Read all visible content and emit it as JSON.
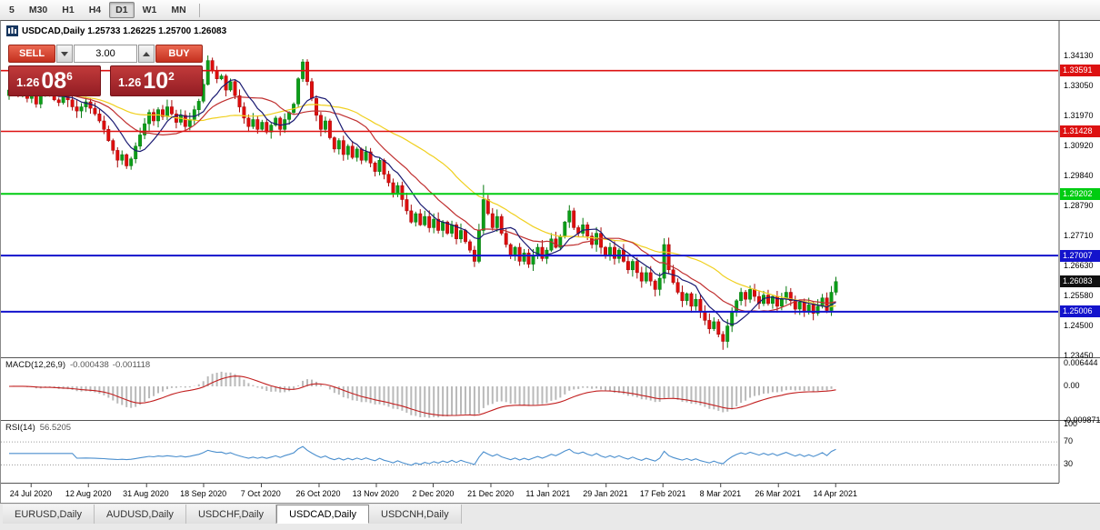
{
  "toolbar": {
    "timeframes": [
      {
        "label": "5",
        "active": false
      },
      {
        "label": "M30",
        "active": false
      },
      {
        "label": "H1",
        "active": false
      },
      {
        "label": "H4",
        "active": false
      },
      {
        "label": "D1",
        "active": true
      },
      {
        "label": "W1",
        "active": false
      },
      {
        "label": "MN",
        "active": false
      }
    ]
  },
  "chart": {
    "title_line": "USDCAD,Daily 1.25733 1.26225 1.25700 1.26083",
    "trade_panel": {
      "sell_label": "SELL",
      "buy_label": "BUY",
      "lot_size": "3.00",
      "sell_price": {
        "big": "1.26",
        "mid": "08",
        "sup": "6"
      },
      "buy_price": {
        "big": "1.26",
        "mid": "10",
        "sup": "2"
      }
    }
  },
  "price_axis": {
    "plain": [
      {
        "text": "1.34130",
        "value": 1.3413
      },
      {
        "text": "1.33050",
        "value": 1.3305
      },
      {
        "text": "1.31970",
        "value": 1.3197
      },
      {
        "text": "1.30920",
        "value": 1.3092
      },
      {
        "text": "1.29840",
        "value": 1.2984
      },
      {
        "text": "1.28790",
        "value": 1.2879
      },
      {
        "text": "1.27710",
        "value": 1.2771
      },
      {
        "text": "1.26630",
        "value": 1.2663
      },
      {
        "text": "1.25580",
        "value": 1.2558
      },
      {
        "text": "1.24500",
        "value": 1.245
      },
      {
        "text": "1.23450",
        "value": 1.2345
      }
    ],
    "levels": [
      {
        "text": "1.33591",
        "value": 1.33591,
        "color": "#dd1111",
        "lw": 1.6
      },
      {
        "text": "1.31428",
        "value": 1.31428,
        "color": "#dd1111",
        "lw": 1.6
      },
      {
        "text": "1.29202",
        "value": 1.29202,
        "color": "#00cc11",
        "lw": 2
      },
      {
        "text": "1.27007",
        "value": 1.27007,
        "color": "#1313cc",
        "lw": 2
      },
      {
        "text": "1.25006",
        "value": 1.25006,
        "color": "#1313cc",
        "lw": 2
      }
    ],
    "current": {
      "text": "1.26083",
      "value": 1.26083,
      "color": "#101010"
    }
  },
  "indicators": {
    "macd": {
      "name": "MACD(12,26,9)",
      "value_main": "-0.000438",
      "value_signal": "-0.001118",
      "axis": [
        "0.006444",
        "0.00",
        "-0.009871"
      ],
      "fast": 12,
      "slow": 26,
      "signal": 9
    },
    "rsi": {
      "name": "RSI(14)",
      "value": "56.5205",
      "axis": [
        "100",
        "70",
        "30"
      ],
      "period": 14,
      "levels": [
        70,
        30
      ]
    }
  },
  "date_axis": [
    "24 Jul 2020",
    "12 Aug 2020",
    "31 Aug 2020",
    "18 Sep 2020",
    "7 Oct 2020",
    "26 Oct 2020",
    "13 Nov 2020",
    "2 Dec 2020",
    "21 Dec 2020",
    "11 Jan 2021",
    "29 Jan 2021",
    "17 Feb 2021",
    "8 Mar 2021",
    "26 Mar 2021",
    "14 Apr 2021"
  ],
  "tabs": [
    {
      "label": "EURUSD,Daily",
      "active": false
    },
    {
      "label": "AUDUSD,Daily",
      "active": false
    },
    {
      "label": "USDCHF,Daily",
      "active": false
    },
    {
      "label": "USDCAD,Daily",
      "active": true
    },
    {
      "label": "USDCNH,Daily",
      "active": false
    }
  ],
  "chart_data": {
    "type": "candlestick",
    "symbol": "USDCAD",
    "timeframe": "Daily",
    "current_bar": {
      "open": 1.25733,
      "high": 1.26225,
      "low": 1.257,
      "close": 1.26083
    },
    "bid": 1.26086,
    "ask": 1.26102,
    "y_range": [
      1.2345,
      1.3413
    ],
    "levels": [
      1.33591,
      1.31428,
      1.29202,
      1.27007,
      1.25006
    ],
    "first_open": 1.327,
    "closes": [
      1.329,
      1.331,
      1.327,
      1.3295,
      1.326,
      1.3285,
      1.324,
      1.327,
      1.33,
      1.328,
      1.3255,
      1.3245,
      1.3268,
      1.3255,
      1.323,
      1.3215,
      1.323,
      1.3248,
      1.3225,
      1.3205,
      1.318,
      1.315,
      1.311,
      1.3075,
      1.304,
      1.306,
      1.302,
      1.3045,
      1.309,
      1.313,
      1.317,
      1.321,
      1.318,
      1.322,
      1.3195,
      1.323,
      1.3205,
      1.3175,
      1.32,
      1.316,
      1.3185,
      1.322,
      1.325,
      1.331,
      1.3395,
      1.336,
      1.333,
      1.334,
      1.329,
      1.332,
      1.327,
      1.323,
      1.319,
      1.316,
      1.3185,
      1.315,
      1.3175,
      1.314,
      1.3165,
      1.319,
      1.315,
      1.3185,
      1.321,
      1.324,
      1.333,
      1.339,
      1.332,
      1.326,
      1.32,
      1.315,
      1.318,
      1.312,
      1.308,
      1.311,
      1.306,
      1.309,
      1.305,
      1.308,
      1.304,
      1.307,
      1.303,
      1.3,
      1.304,
      1.299,
      1.296,
      1.292,
      1.295,
      1.29,
      1.286,
      1.282,
      1.285,
      1.281,
      1.284,
      1.28,
      1.283,
      1.279,
      1.282,
      1.278,
      1.281,
      1.276,
      1.279,
      1.275,
      1.272,
      1.268,
      1.279,
      1.29,
      1.285,
      1.28,
      1.284,
      1.278,
      1.274,
      1.27,
      1.273,
      1.268,
      1.271,
      1.267,
      1.27,
      1.273,
      1.269,
      1.272,
      1.276,
      1.273,
      1.277,
      1.282,
      1.286,
      1.28,
      1.278,
      1.281,
      1.277,
      1.274,
      1.278,
      1.273,
      1.27,
      1.273,
      1.269,
      1.272,
      1.268,
      1.265,
      1.268,
      1.264,
      1.261,
      1.264,
      1.261,
      1.258,
      1.262,
      1.274,
      1.265,
      1.2605,
      1.257,
      1.254,
      1.2565,
      1.252,
      1.2545,
      1.25,
      1.247,
      1.244,
      1.2465,
      1.242,
      1.2395,
      1.245,
      1.25,
      1.254,
      1.257,
      1.2545,
      1.258,
      1.2555,
      1.253,
      1.256,
      1.253,
      1.2555,
      1.252,
      1.2545,
      1.257,
      1.254,
      1.251,
      1.2535,
      1.25,
      1.2525,
      1.2495,
      1.252,
      1.255,
      1.2505,
      1.257,
      1.26083
    ],
    "overrides": {
      "44": {
        "h": 1.3413
      },
      "65": {
        "h": 1.34
      },
      "103": {
        "l": 1.266
      },
      "105": {
        "h": 1.2952
      },
      "158": {
        "l": 1.2365
      },
      "183": {
        "h": 1.2625
      }
    },
    "ma": [
      {
        "period": 34,
        "color": "#f0d020"
      },
      {
        "period": 16,
        "color": "#c03030"
      },
      {
        "period": 8,
        "color": "#1a1a72"
      }
    ]
  }
}
